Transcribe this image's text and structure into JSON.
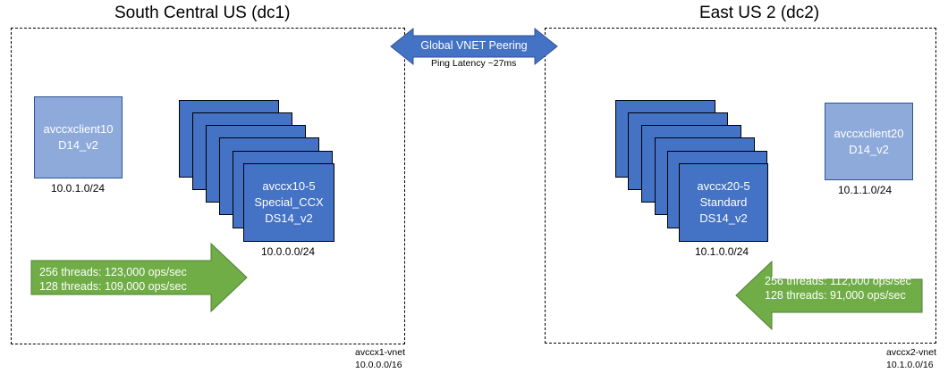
{
  "region_left": {
    "title": "South Central US (dc1)",
    "vnet_name": "avccx1-vnet",
    "vnet_cidr": "10.0.0.0/16",
    "client": {
      "name": "avccxclient10",
      "size": "D14_v2",
      "subnet": "10.0.1.0/24"
    },
    "cluster": {
      "name": "avccx10-5",
      "sku": "Special_CCX",
      "size": "DS14_v2",
      "subnet": "10.0.0.0/24"
    },
    "perf": {
      "line1": "256 threads: 123,000 ops/sec",
      "line2": "128 threads: 109,000 ops/sec"
    }
  },
  "region_right": {
    "title": "East US 2 (dc2)",
    "vnet_name": "avccx2-vnet",
    "vnet_cidr": "10.1.0.0/16",
    "client": {
      "name": "avccxclient20",
      "size": "D14_v2",
      "subnet": "10.1.1.0/24"
    },
    "cluster": {
      "name": "avccx20-5",
      "sku": "Standard",
      "size": "DS14_v2",
      "subnet": "10.1.0.0/24"
    },
    "perf": {
      "line1": "256 threads: 112,000 ops/sec",
      "line2": "128 threads: 91,000 ops/sec"
    }
  },
  "peering": {
    "label": "Global VNET Peering",
    "latency": "Ping Latency ~27ms"
  },
  "colors": {
    "node_fill": "#4472c4",
    "client_fill": "#8eaadb",
    "arrow_fill": "#70ad47",
    "peering_fill": "#4472c4"
  }
}
